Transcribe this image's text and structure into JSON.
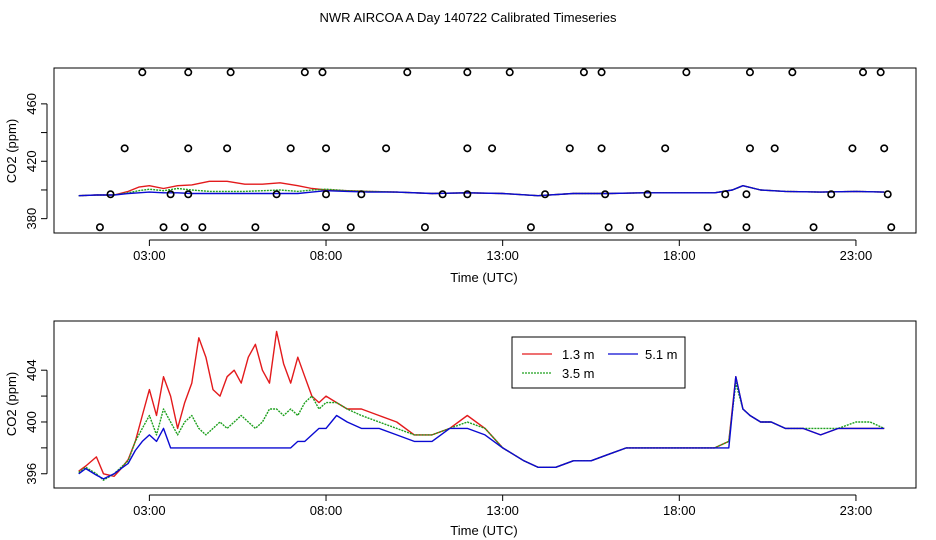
{
  "title": "NWR AIRCOA A  Day 140722  Calibrated Timeseries",
  "colors": {
    "red": "#e31a1c",
    "green": "#1ea01e",
    "blue": "#0a0ad2",
    "axis": "#000000"
  },
  "chart_data": [
    {
      "id": "top",
      "type": "scatter",
      "title": "",
      "xlabel": "Time (UTC)",
      "ylabel": "CO2 (ppm)",
      "xlim": [
        0.3,
        24.7
      ],
      "ylim": [
        370,
        485
      ],
      "xticks": [
        3,
        8,
        13,
        18,
        23
      ],
      "xtick_labels": [
        "03:00",
        "08:00",
        "13:00",
        "18:00",
        "23:00"
      ],
      "yticks": [
        380,
        420,
        460
      ],
      "ytick_labels": [
        "380",
        "420",
        "460"
      ],
      "points": [
        [
          1.6,
          374
        ],
        [
          1.9,
          397
        ],
        [
          2.3,
          429
        ],
        [
          2.8,
          482
        ],
        [
          3.4,
          374
        ],
        [
          3.6,
          397
        ],
        [
          4.0,
          374
        ],
        [
          4.1,
          397
        ],
        [
          4.1,
          429
        ],
        [
          4.1,
          482
        ],
        [
          4.5,
          374
        ],
        [
          5.2,
          429
        ],
        [
          5.3,
          482
        ],
        [
          6.0,
          374
        ],
        [
          6.6,
          397
        ],
        [
          7.0,
          429
        ],
        [
          7.4,
          482
        ],
        [
          7.9,
          482
        ],
        [
          8.0,
          374
        ],
        [
          8.0,
          429
        ],
        [
          8.0,
          397
        ],
        [
          8.7,
          374
        ],
        [
          9.0,
          397
        ],
        [
          9.7,
          429
        ],
        [
          10.3,
          482
        ],
        [
          10.8,
          374
        ],
        [
          11.3,
          397
        ],
        [
          12.0,
          397
        ],
        [
          12.0,
          429
        ],
        [
          12.0,
          482
        ],
        [
          12.7,
          429
        ],
        [
          13.2,
          482
        ],
        [
          13.8,
          374
        ],
        [
          14.2,
          397
        ],
        [
          14.9,
          429
        ],
        [
          15.3,
          482
        ],
        [
          15.8,
          482
        ],
        [
          15.8,
          429
        ],
        [
          15.9,
          397
        ],
        [
          16.0,
          374
        ],
        [
          16.6,
          374
        ],
        [
          17.1,
          397
        ],
        [
          17.6,
          429
        ],
        [
          18.2,
          482
        ],
        [
          18.8,
          374
        ],
        [
          19.3,
          397
        ],
        [
          19.9,
          374
        ],
        [
          19.9,
          397
        ],
        [
          20.0,
          429
        ],
        [
          20.0,
          482
        ],
        [
          20.7,
          429
        ],
        [
          21.2,
          482
        ],
        [
          21.8,
          374
        ],
        [
          22.3,
          397
        ],
        [
          22.9,
          429
        ],
        [
          23.2,
          482
        ],
        [
          23.7,
          482
        ],
        [
          23.8,
          429
        ],
        [
          23.9,
          397
        ],
        [
          24.0,
          374
        ]
      ],
      "series": [
        {
          "name": "1.3 m",
          "color": "#e31a1c",
          "x": [
            1,
            1.5,
            2,
            2.4,
            2.7,
            3,
            3.4,
            3.8,
            4.2,
            4.7,
            5.2,
            5.7,
            6.2,
            6.7,
            7.2,
            7.6,
            8,
            8.6,
            9.2,
            10,
            11,
            12,
            13,
            14,
            15,
            16,
            17,
            18,
            19,
            19.5,
            19.8,
            20.3,
            21,
            22,
            23,
            23.8
          ],
          "y": [
            396,
            396.5,
            396.5,
            399,
            402,
            403,
            401,
            403,
            403.5,
            406,
            406,
            404,
            404,
            405,
            403,
            401,
            400,
            399.5,
            399,
            398.5,
            397.5,
            398,
            397.5,
            396,
            397.5,
            397.5,
            398,
            398,
            398,
            400,
            403,
            400,
            399,
            398.5,
            399,
            398.5
          ]
        },
        {
          "name": "3.5 m",
          "color": "#1ea01e",
          "x": [
            1,
            1.5,
            2,
            2.4,
            2.7,
            3,
            3.4,
            3.8,
            4.2,
            4.7,
            5.2,
            5.7,
            6.2,
            6.7,
            7.2,
            7.6,
            8,
            8.6,
            9.2,
            10,
            11,
            12,
            13,
            14,
            15,
            16,
            17,
            18,
            19,
            19.5,
            19.8,
            20.3,
            21,
            22,
            23,
            23.8
          ],
          "y": [
            396,
            396.5,
            396.5,
            398,
            399.5,
            400.5,
            399.5,
            401,
            400,
            399,
            399,
            399,
            399.5,
            400,
            399,
            400,
            400.5,
            399.5,
            399,
            398.5,
            397.5,
            398,
            397.5,
            396,
            397.5,
            397.5,
            398,
            398,
            398,
            400,
            403,
            400,
            399,
            398.5,
            399,
            398.5
          ]
        },
        {
          "name": "5.1 m",
          "color": "#0a0ad2",
          "x": [
            1,
            1.5,
            2,
            2.4,
            2.7,
            3,
            3.4,
            3.8,
            4.2,
            4.7,
            5.2,
            5.7,
            6.2,
            6.7,
            7.2,
            7.6,
            8,
            8.6,
            9.2,
            10,
            11,
            12,
            13,
            14,
            15,
            16,
            17,
            18,
            19,
            19.5,
            19.8,
            20.3,
            21,
            22,
            23,
            23.8
          ],
          "y": [
            396,
            396.5,
            396.5,
            397.5,
            398,
            398.5,
            398,
            398,
            397.5,
            397.5,
            397.5,
            397.5,
            397.5,
            397.5,
            397.5,
            398.5,
            399.5,
            399,
            398.5,
            398.5,
            397.5,
            398,
            397.5,
            396,
            397.5,
            397.5,
            398,
            398,
            398,
            400,
            403,
            400,
            399,
            398.5,
            399,
            398.5
          ]
        }
      ]
    },
    {
      "id": "bottom",
      "type": "line",
      "title": "",
      "xlabel": "Time (UTC)",
      "ylabel": "CO2 (ppm)",
      "xlim": [
        0.3,
        24.7
      ],
      "ylim": [
        394.9,
        407.8
      ],
      "xticks": [
        3,
        8,
        13,
        18,
        23
      ],
      "xtick_labels": [
        "03:00",
        "08:00",
        "13:00",
        "18:00",
        "23:00"
      ],
      "yticks": [
        396,
        400,
        404
      ],
      "ytick_labels": [
        "396",
        "400",
        "404"
      ],
      "legend": {
        "position": "top-center",
        "columns": 2
      },
      "series": [
        {
          "name": "1.3 m",
          "color": "#e31a1c",
          "x": [
            1,
            1.2,
            1.5,
            1.7,
            2,
            2.2,
            2.4,
            2.6,
            2.8,
            3,
            3.2,
            3.4,
            3.6,
            3.8,
            4,
            4.2,
            4.4,
            4.6,
            4.8,
            5,
            5.2,
            5.4,
            5.6,
            5.8,
            6,
            6.2,
            6.4,
            6.6,
            6.8,
            7,
            7.2,
            7.4,
            7.6,
            7.8,
            8,
            8.3,
            8.6,
            9,
            9.5,
            10,
            10.5,
            11,
            11.5,
            12,
            12.5,
            13,
            13.3,
            13.6,
            14,
            14.5,
            15,
            15.5,
            16,
            16.5,
            17,
            17.5,
            18,
            18.5,
            19,
            19.4,
            19.6,
            19.8,
            20,
            20.3,
            20.6,
            21,
            21.5,
            22,
            22.5,
            23,
            23.4,
            23.8
          ],
          "y": [
            396.2,
            396.6,
            397.3,
            396.0,
            395.8,
            396.4,
            397.1,
            398.5,
            400.5,
            402.5,
            400.5,
            403.5,
            402.0,
            399.5,
            401.5,
            403.0,
            406.5,
            405.0,
            402.5,
            402.0,
            403.5,
            404.0,
            403.0,
            405.0,
            406.0,
            404.0,
            403.0,
            407.0,
            404.5,
            403.0,
            405.0,
            403.5,
            402.0,
            401.5,
            402.0,
            401.5,
            401.0,
            401.0,
            400.5,
            400.0,
            399.0,
            399.0,
            399.5,
            400.5,
            399.5,
            398.0,
            397.5,
            397.0,
            396.5,
            396.5,
            397.0,
            397.0,
            397.5,
            398.0,
            398.0,
            398.0,
            398.0,
            398.0,
            398.0,
            398.5,
            403.5,
            401.0,
            400.5,
            400.0,
            400.0,
            399.5,
            399.5,
            399.0,
            399.5,
            399.5,
            399.5,
            399.5
          ]
        },
        {
          "name": "3.5 m",
          "color": "#1ea01e",
          "x": [
            1,
            1.2,
            1.5,
            1.7,
            2,
            2.2,
            2.4,
            2.6,
            2.8,
            3,
            3.2,
            3.4,
            3.6,
            3.8,
            4,
            4.2,
            4.4,
            4.6,
            4.8,
            5,
            5.2,
            5.4,
            5.6,
            5.8,
            6,
            6.2,
            6.4,
            6.6,
            6.8,
            7,
            7.2,
            7.4,
            7.6,
            7.8,
            8,
            8.3,
            8.6,
            9,
            9.5,
            10,
            10.5,
            11,
            11.5,
            12,
            12.5,
            13,
            13.3,
            13.6,
            14,
            14.5,
            15,
            15.5,
            16,
            16.5,
            17,
            17.5,
            18,
            18.5,
            19,
            19.4,
            19.6,
            19.8,
            20,
            20.3,
            20.6,
            21,
            21.5,
            22,
            22.5,
            23,
            23.4,
            23.8
          ],
          "y": [
            396.1,
            396.5,
            396.0,
            395.5,
            396.0,
            396.5,
            397.0,
            398.5,
            399.5,
            400.5,
            399.0,
            401.0,
            400.0,
            399.0,
            400.0,
            400.5,
            399.5,
            399.0,
            399.5,
            400.0,
            399.5,
            400.0,
            400.5,
            400.0,
            399.5,
            400.0,
            401.0,
            401.0,
            400.5,
            401.0,
            400.5,
            401.5,
            402.0,
            401.0,
            401.5,
            401.5,
            401.0,
            400.5,
            400.0,
            399.5,
            399.0,
            399.0,
            399.5,
            400.0,
            399.5,
            398.0,
            397.5,
            397.0,
            396.5,
            396.5,
            397.0,
            397.0,
            397.5,
            398.0,
            398.0,
            398.0,
            398.0,
            398.0,
            398.0,
            398.5,
            403.0,
            401.0,
            400.5,
            400.0,
            400.0,
            399.5,
            399.5,
            399.5,
            399.5,
            400.0,
            400.0,
            399.5
          ]
        },
        {
          "name": "5.1 m",
          "color": "#0a0ad2",
          "x": [
            1,
            1.2,
            1.5,
            1.7,
            2,
            2.2,
            2.4,
            2.6,
            2.8,
            3,
            3.2,
            3.4,
            3.6,
            3.8,
            4,
            4.2,
            4.4,
            4.6,
            4.8,
            5,
            5.2,
            5.4,
            5.6,
            5.8,
            6,
            6.2,
            6.4,
            6.6,
            6.8,
            7,
            7.2,
            7.4,
            7.6,
            7.8,
            8,
            8.3,
            8.6,
            9,
            9.5,
            10,
            10.5,
            11,
            11.5,
            12,
            12.5,
            13,
            13.3,
            13.6,
            14,
            14.5,
            15,
            15.5,
            16,
            16.5,
            17,
            17.5,
            18,
            18.5,
            19,
            19.4,
            19.6,
            19.8,
            20,
            20.3,
            20.6,
            21,
            21.5,
            22,
            22.5,
            23,
            23.4,
            23.8
          ],
          "y": [
            396.0,
            396.4,
            395.9,
            395.6,
            396.0,
            396.4,
            396.8,
            397.8,
            398.5,
            399.0,
            398.5,
            399.5,
            398.0,
            398.0,
            398.0,
            398.0,
            398.0,
            398.0,
            398.0,
            398.0,
            398.0,
            398.0,
            398.0,
            398.0,
            398.0,
            398.0,
            398.0,
            398.0,
            398.0,
            398.0,
            398.5,
            398.5,
            399.0,
            399.5,
            399.5,
            400.5,
            400.0,
            399.5,
            399.5,
            399.0,
            398.5,
            398.5,
            399.5,
            399.5,
            399.0,
            398.0,
            397.5,
            397.0,
            396.5,
            396.5,
            397.0,
            397.0,
            397.5,
            398.0,
            398.0,
            398.0,
            398.0,
            398.0,
            398.0,
            398.0,
            403.5,
            401.0,
            400.5,
            400.0,
            400.0,
            399.5,
            399.5,
            399.0,
            399.5,
            399.5,
            399.5,
            399.5
          ]
        }
      ]
    }
  ]
}
